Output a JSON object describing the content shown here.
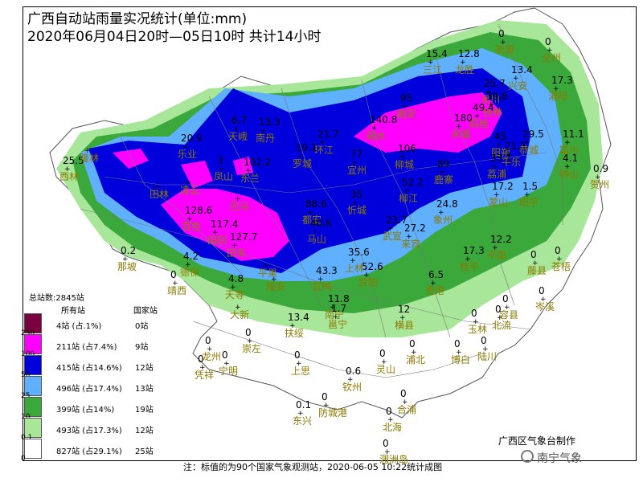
{
  "title": "广西自动站雨量实况统计(单位:mm)",
  "subtitle": "2020年06月04日20时—05日10时  共计14小时",
  "legend": {
    "total": "总站数:2845站",
    "col_all": "所有站",
    "col_nat": "国家站",
    "classes": [
      {
        "threshold": "250",
        "all": "4站 (占.1%)",
        "nat": "0站",
        "color": "#7a0040"
      },
      {
        "threshold": "100",
        "all": "211站 (占7.4%)",
        "nat": "9站",
        "color": "#ff00ff"
      },
      {
        "threshold": "50",
        "all": "415站 (占14.6%)",
        "nat": "12站",
        "color": "#0000dd"
      },
      {
        "threshold": "25",
        "all": "496站 (占17.4%)",
        "nat": "13站",
        "color": "#5fb0ff"
      },
      {
        "threshold": "10",
        "all": "399站 (占14%)",
        "nat": "19站",
        "color": "#3aa83a"
      },
      {
        "threshold": "0.1",
        "all": "493站 (占17.3%)",
        "nat": "12站",
        "color": "#a8e69a"
      },
      {
        "threshold": "0",
        "all": "827站 (占29.1%)",
        "nat": "25站",
        "color": "#ffffff"
      }
    ]
  },
  "footnote": "注：标值的为90个国家气象观测站，2020-06-05 10:22统计成图",
  "credit": "广西区气象台制作",
  "watermark": "南宁气象",
  "stations": [
    {
      "name": "资源",
      "value": "0"
    },
    {
      "name": "全州",
      "value": "0"
    },
    {
      "name": "三江",
      "value": "15.4"
    },
    {
      "name": "龙胜",
      "value": "12.8"
    },
    {
      "name": "兴安",
      "value": "13.4"
    },
    {
      "name": "灌阳",
      "value": "17.3"
    },
    {
      "name": "灵川",
      "value": "25.7"
    },
    {
      "name": "桂林",
      "value": "39.8"
    },
    {
      "name": "临桂",
      "value": "49.4"
    },
    {
      "name": "融安",
      "value": "95"
    },
    {
      "name": "融水",
      "value": "140.8"
    },
    {
      "name": "永福",
      "value": "180"
    },
    {
      "name": "环江",
      "value": "21.7"
    },
    {
      "name": "南丹",
      "value": "13.3"
    },
    {
      "name": "天峨",
      "value": "6.7"
    },
    {
      "name": "乐业",
      "value": "20.9"
    },
    {
      "name": "西林",
      "value": "25.5"
    },
    {
      "name": "隆林",
      "value": ""
    },
    {
      "name": "田林",
      "value": ""
    },
    {
      "name": "凌云",
      "value": ""
    },
    {
      "name": "凤山",
      "value": "3"
    },
    {
      "name": "东兰",
      "value": "101.2"
    },
    {
      "name": "罗城",
      "value": "19.1"
    },
    {
      "name": "宜州",
      "value": "77"
    },
    {
      "name": "柳城",
      "value": "106"
    },
    {
      "name": "鹿寨",
      "value": "89"
    },
    {
      "name": "阳朔",
      "value": "45"
    },
    {
      "name": "平乐",
      "value": "21.5"
    },
    {
      "name": "恭城",
      "value": "29.5"
    },
    {
      "name": "富川",
      "value": "11.1"
    },
    {
      "name": "钟山",
      "value": "4.1"
    },
    {
      "name": "贺州",
      "value": "0.9"
    },
    {
      "name": "荔浦",
      "value": "33.1"
    },
    {
      "name": "柳江",
      "value": "52.2"
    },
    {
      "name": "忻城",
      "value": "35"
    },
    {
      "name": "都安",
      "value": "88.6"
    },
    {
      "name": "巴马",
      "value": ""
    },
    {
      "name": "百色",
      "value": "128.6"
    },
    {
      "name": "田阳",
      "value": "117.4"
    },
    {
      "name": "田东",
      "value": "127.7"
    },
    {
      "name": "马山",
      "value": "40.6"
    },
    {
      "name": "象州",
      "value": "24.8"
    },
    {
      "name": "武宣",
      "value": "23.7"
    },
    {
      "name": "来宾",
      "value": "27.2"
    },
    {
      "name": "蒙山",
      "value": "17.2"
    },
    {
      "name": "昭平",
      "value": "1.5"
    },
    {
      "name": "平南",
      "value": "12.2"
    },
    {
      "name": "桂平",
      "value": "17.3"
    },
    {
      "name": "那坡",
      "value": "0.2"
    },
    {
      "name": "德保",
      "value": "4.2"
    },
    {
      "name": "靖西",
      "value": "0"
    },
    {
      "name": "天等",
      "value": "4.8"
    },
    {
      "name": "平果",
      "value": ""
    },
    {
      "name": "隆安",
      "value": ""
    },
    {
      "name": "武鸣",
      "value": "43.3"
    },
    {
      "name": "宾阳",
      "value": "52.6"
    },
    {
      "name": "上林",
      "value": "35.6"
    },
    {
      "name": "贵港",
      "value": "6.5"
    },
    {
      "name": "藤县",
      "value": "0"
    },
    {
      "name": "苍梧",
      "value": "0"
    },
    {
      "name": "大新",
      "value": ""
    },
    {
      "name": "南宁",
      "value": "11.8"
    },
    {
      "name": "横县",
      "value": "12"
    },
    {
      "name": "容县",
      "value": "0"
    },
    {
      "name": "岑溪",
      "value": "0"
    },
    {
      "name": "扶绥",
      "value": "13.4"
    },
    {
      "name": "邕宁",
      "value": "1.7"
    },
    {
      "name": "玉林",
      "value": "0"
    },
    {
      "name": "北流",
      "value": "0"
    },
    {
      "name": "崇左",
      "value": "0"
    },
    {
      "name": "龙州",
      "value": "0"
    },
    {
      "name": "宁明",
      "value": "0"
    },
    {
      "name": "凭祥",
      "value": "0"
    },
    {
      "name": "上思",
      "value": "0"
    },
    {
      "name": "灵山",
      "value": "0"
    },
    {
      "name": "浦北",
      "value": "0"
    },
    {
      "name": "博白",
      "value": "0"
    },
    {
      "name": "陆川",
      "value": "0"
    },
    {
      "name": "钦州",
      "value": "0.6"
    },
    {
      "name": "防城港",
      "value": "0"
    },
    {
      "name": "东兴",
      "value": "0.1"
    },
    {
      "name": "合浦",
      "value": "0"
    },
    {
      "name": "北海",
      "value": "0"
    },
    {
      "name": "涠洲岛",
      "value": "0"
    }
  ]
}
